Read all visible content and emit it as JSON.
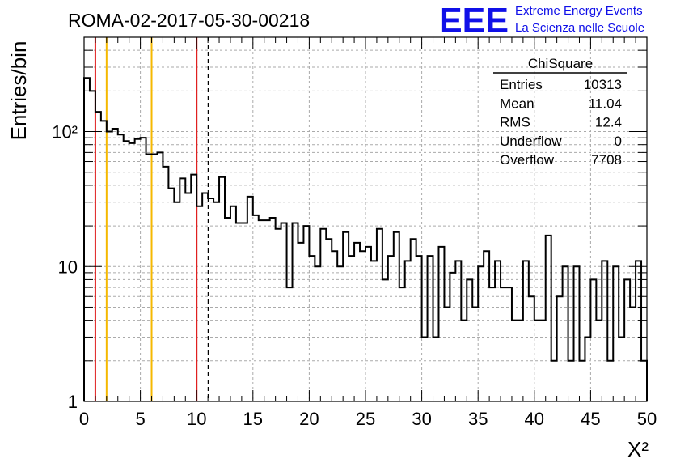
{
  "header": {
    "run_title": "ROMA-02-2017-05-30-00218",
    "logo_text": "EEE",
    "logo_line1": "Extreme Energy Events",
    "logo_line2": "La Scienza nelle Scuole",
    "logo_color": "#1010e8"
  },
  "stats_box": {
    "title": "ChiSquare",
    "rows": [
      {
        "label": "Entries",
        "value": "10313"
      },
      {
        "label": "Mean",
        "value": "11.04"
      },
      {
        "label": "RMS",
        "value": "12.4"
      },
      {
        "label": "Underflow",
        "value": "0"
      },
      {
        "label": "Overflow",
        "value": "7708"
      }
    ]
  },
  "chart_data": {
    "type": "bar",
    "style": "step-histogram",
    "xlabel": "X²",
    "ylabel": "Entries/bin",
    "xlim": [
      0,
      50
    ],
    "ylim": [
      1,
      500
    ],
    "yscale": "log",
    "grid": true,
    "bin_width": 0.5,
    "x_ticks": [
      "0",
      "5",
      "10",
      "15",
      "20",
      "25",
      "30",
      "35",
      "40",
      "45",
      "50"
    ],
    "y_ticks": [
      "1",
      "10",
      "10²"
    ],
    "values": [
      250,
      200,
      140,
      120,
      100,
      105,
      95,
      85,
      82,
      88,
      90,
      68,
      68,
      70,
      55,
      38,
      30,
      45,
      35,
      48,
      28,
      35,
      32,
      30,
      46,
      23,
      28,
      21,
      21,
      33,
      24,
      22,
      22,
      23,
      19,
      21,
      7,
      21,
      15,
      20,
      12,
      10,
      19,
      16,
      13,
      10,
      18,
      12,
      15,
      13,
      14,
      11,
      19,
      8,
      12,
      18,
      7,
      11,
      16,
      12,
      3,
      12,
      3,
      14,
      5,
      9,
      11,
      4,
      8,
      5,
      10,
      13,
      7,
      11,
      7,
      7,
      4,
      4,
      11,
      6,
      4,
      4,
      17,
      2,
      6,
      10,
      2,
      10,
      2,
      3,
      8,
      4,
      11,
      2,
      10,
      3,
      8,
      5,
      11,
      2
    ],
    "markers": [
      {
        "x": 1,
        "color": "#e02020",
        "style": "solid"
      },
      {
        "x": 2,
        "color": "#f5b800",
        "style": "solid"
      },
      {
        "x": 6,
        "color": "#f5b800",
        "style": "solid"
      },
      {
        "x": 10,
        "color": "#e02020",
        "style": "solid"
      },
      {
        "x": 11.04,
        "color": "#000000",
        "style": "dashed"
      }
    ]
  }
}
